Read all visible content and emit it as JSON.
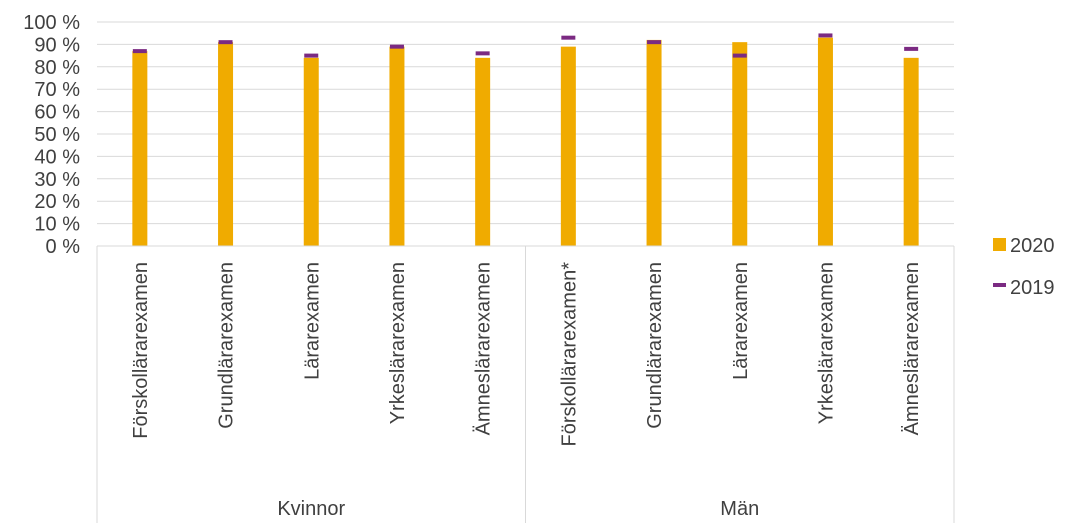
{
  "chart_data": {
    "type": "bar",
    "groups": [
      {
        "label": "Kvinnor",
        "categories": [
          "Förskollärarexamen",
          "Grundlärarexamen",
          "Lärarexamen",
          "Yrkeslärarexamen",
          "Ämneslärarexamen"
        ]
      },
      {
        "label": "Män",
        "categories": [
          "Förskollärarexamen*",
          "Grundlärarexamen",
          "Lärarexamen",
          "Yrkeslärarexamen",
          "Ämneslärarexamen"
        ]
      }
    ],
    "series": [
      {
        "name": "2020",
        "kind": "bar",
        "color": "#f0ab00",
        "values": [
          87,
          91,
          84,
          89,
          84,
          89,
          92,
          91,
          93,
          84
        ]
      },
      {
        "name": "2019",
        "kind": "marker",
        "color": "#7b2a82",
        "values": [
          87,
          91,
          85,
          89,
          86,
          93,
          91,
          85,
          94,
          88
        ]
      }
    ],
    "ylim": [
      0,
      100
    ],
    "yticks": [
      0,
      10,
      20,
      30,
      40,
      50,
      60,
      70,
      80,
      90,
      100
    ],
    "ytick_labels": [
      "0 %",
      "10 %",
      "20 %",
      "30 %",
      "40 %",
      "50 %",
      "60 %",
      "70 %",
      "80 %",
      "90 %",
      "100 %"
    ],
    "grid": true,
    "legend": "right"
  }
}
